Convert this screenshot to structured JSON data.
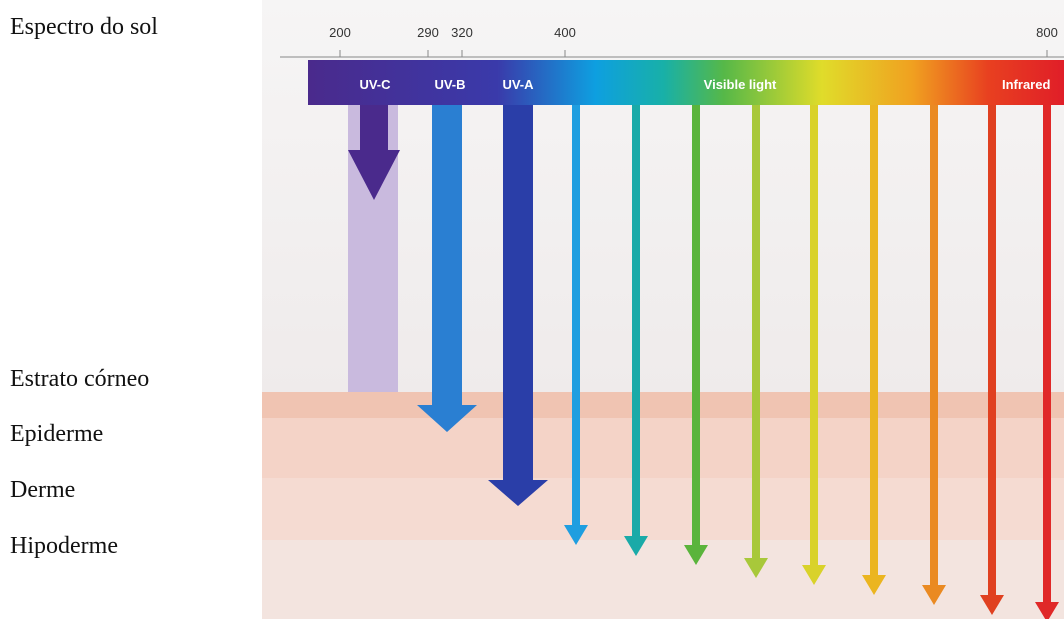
{
  "title": "Espectro do sol",
  "layers": [
    "Estrato córneo",
    "Epiderme",
    "Derme",
    "Hipoderme"
  ],
  "scale_ticks": [
    "200",
    "290",
    "320",
    "400",
    "800"
  ],
  "bands": [
    "UV-C",
    "UV-B",
    "UV-A",
    "Visible light",
    "Infrared"
  ]
}
